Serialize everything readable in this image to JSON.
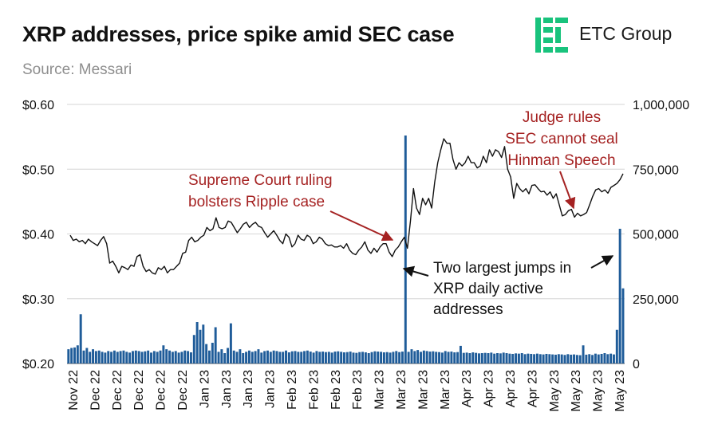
{
  "header": {
    "title": "XRP addresses, price spike amid SEC case",
    "subtitle": "Source: Messari",
    "brand": "ETC Group"
  },
  "colors": {
    "price_line": "#111111",
    "bars": "#1f5c99",
    "annotation_red": "#a52222",
    "annotation_black": "#111111",
    "logo_green": "#19c37d",
    "grid": "#d6d6d6"
  },
  "chart_data": {
    "type": "bar+line",
    "title": "XRP addresses, price spike amid SEC case",
    "left_axis": {
      "ylim": [
        0.2,
        0.6
      ],
      "ticks": [
        "$0.20",
        "$0.30",
        "$0.40",
        "$0.50",
        "$0.60"
      ]
    },
    "right_axis": {
      "ylim": [
        0,
        1000000
      ],
      "ticks": [
        "0",
        "250,000",
        "500,000",
        "750,000",
        "1,000,000"
      ]
    },
    "x_tick_labels": [
      "Nov 22",
      "Dec 22",
      "Dec 22",
      "Dec 22",
      "Dec 22",
      "Dec 22",
      "Jan 23",
      "Jan 23",
      "Jan 23",
      "Jan 23",
      "Feb 23",
      "Feb 23",
      "Feb 23",
      "Feb 23",
      "Mar 23",
      "Mar 23",
      "Mar 23",
      "Mar 23",
      "Apr 23",
      "Apr 23",
      "Apr 23",
      "Apr 23",
      "May 23",
      "May 23",
      "May 23",
      "May 23"
    ],
    "grid": "horizontal",
    "series": [
      {
        "name": "Price",
        "type": "line",
        "axis": "left",
        "values": [
          0.398,
          0.39,
          0.392,
          0.388,
          0.39,
          0.385,
          0.392,
          0.388,
          0.385,
          0.382,
          0.39,
          0.396,
          0.385,
          0.355,
          0.358,
          0.35,
          0.34,
          0.35,
          0.348,
          0.345,
          0.352,
          0.35,
          0.365,
          0.368,
          0.35,
          0.342,
          0.345,
          0.34,
          0.338,
          0.348,
          0.345,
          0.35,
          0.34,
          0.345,
          0.345,
          0.35,
          0.355,
          0.37,
          0.372,
          0.39,
          0.395,
          0.388,
          0.39,
          0.395,
          0.398,
          0.41,
          0.405,
          0.408,
          0.425,
          0.41,
          0.408,
          0.41,
          0.42,
          0.418,
          0.41,
          0.402,
          0.408,
          0.415,
          0.418,
          0.41,
          0.415,
          0.418,
          0.412,
          0.41,
          0.402,
          0.395,
          0.4,
          0.405,
          0.398,
          0.39,
          0.385,
          0.4,
          0.395,
          0.38,
          0.385,
          0.398,
          0.392,
          0.39,
          0.398,
          0.395,
          0.385,
          0.388,
          0.395,
          0.392,
          0.385,
          0.382,
          0.383,
          0.38,
          0.38,
          0.382,
          0.378,
          0.385,
          0.375,
          0.37,
          0.368,
          0.375,
          0.38,
          0.388,
          0.375,
          0.37,
          0.378,
          0.372,
          0.38,
          0.385,
          0.385,
          0.372,
          0.365,
          0.375,
          0.38,
          0.388,
          0.395,
          0.378,
          0.42,
          0.47,
          0.44,
          0.43,
          0.455,
          0.445,
          0.455,
          0.44,
          0.48,
          0.51,
          0.53,
          0.547,
          0.54,
          0.54,
          0.515,
          0.5,
          0.51,
          0.505,
          0.51,
          0.52,
          0.51,
          0.51,
          0.502,
          0.505,
          0.52,
          0.51,
          0.53,
          0.52,
          0.53,
          0.527,
          0.518,
          0.535,
          0.5,
          0.488,
          0.455,
          0.478,
          0.47,
          0.465,
          0.47,
          0.462,
          0.475,
          0.476,
          0.47,
          0.465,
          0.466,
          0.46,
          0.465,
          0.455,
          0.462,
          0.445,
          0.428,
          0.43,
          0.436,
          0.438,
          0.426,
          0.432,
          0.428,
          0.43,
          0.433,
          0.445,
          0.458,
          0.468,
          0.47,
          0.465,
          0.468,
          0.463,
          0.472,
          0.475,
          0.478,
          0.484,
          0.493
        ]
      },
      {
        "name": "Daily active addresses",
        "type": "bar",
        "axis": "right",
        "values": [
          55000,
          60000,
          62000,
          70000,
          190000,
          50000,
          60000,
          45000,
          55000,
          48000,
          50000,
          45000,
          42000,
          48000,
          45000,
          50000,
          45000,
          48000,
          50000,
          45000,
          42000,
          48000,
          50000,
          48000,
          45000,
          47000,
          50000,
          42000,
          48000,
          45000,
          50000,
          70000,
          55000,
          50000,
          45000,
          48000,
          42000,
          45000,
          50000,
          48000,
          43000,
          110000,
          160000,
          130000,
          150000,
          75000,
          50000,
          80000,
          140000,
          45000,
          55000,
          40000,
          60000,
          155000,
          50000,
          45000,
          55000,
          40000,
          45000,
          50000,
          45000,
          48000,
          55000,
          42000,
          48000,
          50000,
          45000,
          50000,
          48000,
          45000,
          45000,
          50000,
          43000,
          47000,
          48000,
          45000,
          45000,
          48000,
          50000,
          46000,
          42000,
          48000,
          45000,
          46000,
          44000,
          45000,
          42000,
          46000,
          47000,
          45000,
          43000,
          44000,
          46000,
          42000,
          41000,
          44000,
          45000,
          43000,
          40000,
          44000,
          47000,
          46000,
          45000,
          43000,
          44000,
          42000,
          45000,
          48000,
          44000,
          46000,
          880000,
          45000,
          55000,
          48000,
          52000,
          45000,
          50000,
          48000,
          46000,
          47000,
          45000,
          44000,
          42000,
          48000,
          45000,
          46000,
          43000,
          44000,
          68000,
          41000,
          42000,
          40000,
          43000,
          41000,
          39000,
          40000,
          41000,
          40000,
          42000,
          38000,
          40000,
          39000,
          42000,
          40000,
          38000,
          37000,
          39000,
          38000,
          40000,
          36000,
          38000,
          37000,
          36000,
          38000,
          36000,
          35000,
          37000,
          36000,
          35000,
          34000,
          36000,
          35000,
          33000,
          36000,
          34000,
          35000,
          33000,
          32000,
          70000,
          34000,
          36000,
          33000,
          38000,
          35000,
          37000,
          40000,
          36000,
          38000,
          35000,
          130000,
          520000,
          290000
        ]
      }
    ],
    "annotations": [
      {
        "id": "supreme",
        "lines": [
          "Supreme Court ruling",
          "bolsters Ripple case"
        ],
        "color": "#a52222"
      },
      {
        "id": "judge",
        "lines": [
          "Judge rules",
          "SEC cannot seal",
          "Hinman Speech"
        ],
        "color": "#a52222"
      },
      {
        "id": "jumps",
        "lines": [
          "Two largest jumps in",
          "XRP daily active",
          "addresses"
        ],
        "color": "#111111"
      }
    ]
  }
}
